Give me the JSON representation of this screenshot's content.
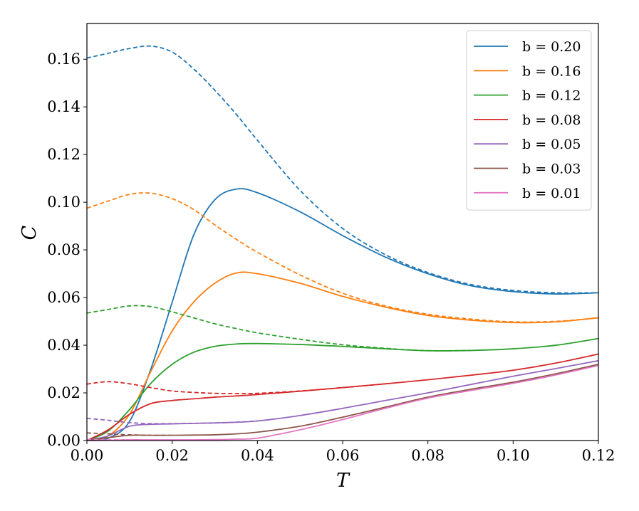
{
  "chart_data": {
    "type": "line",
    "xlabel": "T",
    "ylabel": "C",
    "xlim": [
      0.0,
      0.12
    ],
    "ylim": [
      0.0,
      0.175
    ],
    "xticks": [
      "0.00",
      "0.02",
      "0.04",
      "0.06",
      "0.08",
      "0.10",
      "0.12"
    ],
    "yticks": [
      "0.00",
      "0.02",
      "0.04",
      "0.06",
      "0.08",
      "0.10",
      "0.12",
      "0.14",
      "0.16"
    ],
    "grid": false,
    "legend_position": "top-right",
    "x": [
      0.0,
      0.005,
      0.01,
      0.015,
      0.02,
      0.025,
      0.03,
      0.035,
      0.04,
      0.05,
      0.06,
      0.07,
      0.08,
      0.09,
      0.1,
      0.11,
      0.12
    ],
    "series": [
      {
        "name": "b = 0.20",
        "color": "#1f77b4",
        "solid": [
          0.0,
          0.001,
          0.008,
          0.03,
          0.058,
          0.086,
          0.101,
          0.1055,
          0.104,
          0.096,
          0.086,
          0.077,
          0.07,
          0.065,
          0.0625,
          0.0615,
          0.062
        ],
        "dashed": [
          0.1605,
          0.1625,
          0.1645,
          0.1655,
          0.163,
          0.156,
          0.147,
          0.137,
          0.126,
          0.105,
          0.089,
          0.078,
          0.0705,
          0.0655,
          0.063,
          0.062,
          0.062
        ]
      },
      {
        "name": "b = 0.16",
        "color": "#ff7f0e",
        "solid": [
          0.0,
          0.002,
          0.011,
          0.029,
          0.046,
          0.058,
          0.066,
          0.0703,
          0.07,
          0.066,
          0.0605,
          0.056,
          0.0525,
          0.0505,
          0.0495,
          0.0498,
          0.0515
        ],
        "dashed": [
          0.0975,
          0.1005,
          0.1033,
          0.1038,
          0.1015,
          0.097,
          0.0905,
          0.0845,
          0.079,
          0.0695,
          0.0618,
          0.0565,
          0.053,
          0.051,
          0.0498,
          0.05,
          0.0515
        ]
      },
      {
        "name": "b = 0.12",
        "color": "#2ca02c",
        "solid": [
          0.0,
          0.004,
          0.013,
          0.024,
          0.032,
          0.037,
          0.0395,
          0.0405,
          0.0407,
          0.0403,
          0.0395,
          0.0385,
          0.0377,
          0.0378,
          0.0385,
          0.04,
          0.0428
        ],
        "dashed": [
          0.0535,
          0.055,
          0.0565,
          0.0562,
          0.054,
          0.0515,
          0.049,
          0.047,
          0.0452,
          0.0425,
          0.0402,
          0.0387,
          0.0377,
          0.0378,
          0.0385,
          0.04,
          0.0428
        ],
        "dashed_until": 0.09
      },
      {
        "name": "b = 0.08",
        "color": "#d62728",
        "solid": [
          0.0,
          0.0045,
          0.011,
          0.0155,
          0.0168,
          0.0175,
          0.0182,
          0.0187,
          0.0193,
          0.0207,
          0.0222,
          0.0238,
          0.0255,
          0.0274,
          0.0295,
          0.0325,
          0.0363
        ],
        "dashed": [
          0.0237,
          0.0247,
          0.0238,
          0.0222,
          0.0208,
          0.0202,
          0.0198,
          0.0197,
          0.0198,
          0.0208,
          0.0222,
          0.0238,
          0.0255,
          0.0274,
          0.0295,
          0.0325,
          0.0363
        ],
        "dashed_until": 0.07
      },
      {
        "name": "b = 0.05",
        "color": "#9467bd",
        "solid": [
          0.0,
          0.002,
          0.006,
          0.0068,
          0.007,
          0.0072,
          0.0074,
          0.0077,
          0.0082,
          0.0105,
          0.0135,
          0.0168,
          0.02,
          0.0235,
          0.027,
          0.0302,
          0.0335
        ],
        "dashed": [
          0.0093,
          0.0085,
          0.0075,
          0.0071,
          0.0071,
          0.0072,
          0.0074,
          0.0077,
          0.0082,
          0.0105,
          0.0135,
          0.0168,
          0.02,
          0.0235,
          0.027,
          0.0302,
          0.0335
        ],
        "dashed_until": 0.04
      },
      {
        "name": "b = 0.03",
        "color": "#8c564b",
        "solid": [
          0.0,
          0.0012,
          0.0022,
          0.0022,
          0.0022,
          0.0023,
          0.0024,
          0.0028,
          0.0035,
          0.006,
          0.0098,
          0.014,
          0.0182,
          0.0215,
          0.0245,
          0.028,
          0.032
        ],
        "dashed": [
          0.0032,
          0.0028,
          0.0024,
          0.0022,
          0.0022,
          0.0023,
          0.0024,
          0.0028,
          0.0035,
          0.006,
          0.0098,
          0.014,
          0.0182,
          0.0215,
          0.0245,
          0.028,
          0.032
        ],
        "dashed_until": 0.02
      },
      {
        "name": "b = 0.01",
        "color": "#e377c2",
        "solid": [
          0.0,
          0.0001,
          0.0003,
          0.0003,
          0.0003,
          0.0003,
          0.0004,
          0.0006,
          0.001,
          0.0045,
          0.0088,
          0.0135,
          0.0178,
          0.021,
          0.024,
          0.0275,
          0.0315
        ],
        "dashed": [
          0.0004,
          0.0003,
          0.0003,
          0.0003,
          0.0003,
          0.0003,
          0.0004,
          0.0006,
          0.001,
          0.0045,
          0.0088,
          0.0135,
          0.0178,
          0.021,
          0.024,
          0.0275,
          0.0315
        ],
        "dashed_until": 0.01
      }
    ]
  }
}
